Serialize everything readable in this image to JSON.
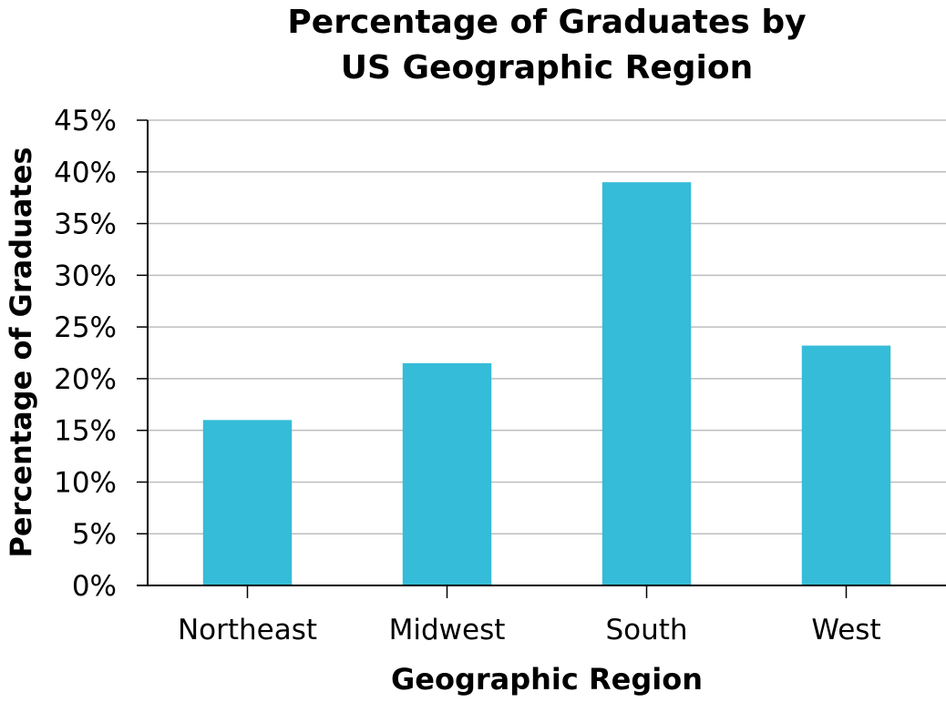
{
  "chart_data": {
    "type": "bar",
    "title_lines": [
      "Percentage of Graduates by",
      "US Geographic Region"
    ],
    "xlabel": "Geographic Region",
    "ylabel": "Percentage of Graduates",
    "categories": [
      "Northeast",
      "Midwest",
      "South",
      "West"
    ],
    "values": [
      16,
      21.5,
      39,
      23.2
    ],
    "ylim": [
      0,
      45
    ],
    "yticks": [
      0,
      5,
      10,
      15,
      20,
      25,
      30,
      35,
      40,
      45
    ],
    "ytick_labels": [
      "0%",
      "5%",
      "10%",
      "15%",
      "20%",
      "25%",
      "30%",
      "35%",
      "40%",
      "45%"
    ],
    "grid": true,
    "bar_color": "#35bcd8"
  }
}
